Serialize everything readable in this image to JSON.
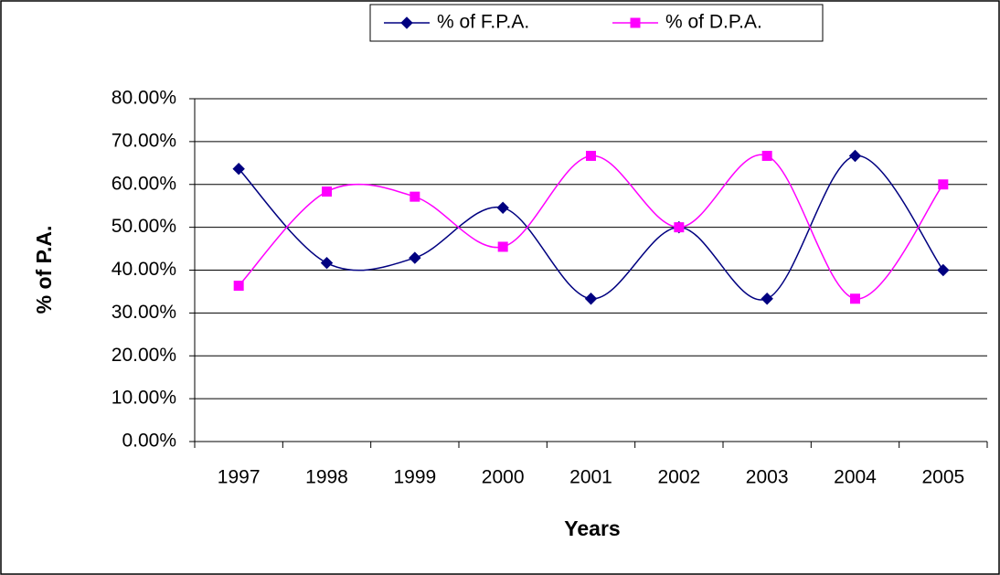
{
  "chart_data": {
    "type": "line",
    "x_label": "Years",
    "y_label": "% of P.A.",
    "categories": [
      "1997",
      "1998",
      "1999",
      "2000",
      "2001",
      "2002",
      "2003",
      "2004",
      "2005"
    ],
    "series": [
      {
        "name": "% of F.P.A.",
        "color": "#000080",
        "marker": "diamond",
        "values": [
          63.64,
          41.67,
          42.86,
          54.55,
          33.33,
          50,
          33.33,
          66.67,
          40
        ]
      },
      {
        "name": "% of D.P.A.",
        "color": "#ff00ff",
        "marker": "square",
        "values": [
          36.36,
          58.33,
          57.14,
          45.45,
          66.67,
          50,
          66.67,
          33.33,
          60
        ]
      }
    ],
    "ylim": [
      0,
      80
    ],
    "yticks": [
      {
        "value": 0,
        "label": "0.00%"
      },
      {
        "value": 10,
        "label": "10.00%"
      },
      {
        "value": 20,
        "label": "20.00%"
      },
      {
        "value": 30,
        "label": "30.00%"
      },
      {
        "value": 40,
        "label": "40.00%"
      },
      {
        "value": 50,
        "label": "50.00%"
      },
      {
        "value": 60,
        "label": "60.00%"
      },
      {
        "value": 70,
        "label": "70.00%"
      },
      {
        "value": 80,
        "label": "80.00%"
      }
    ],
    "grid": true,
    "smooth": true,
    "legend": "top"
  }
}
